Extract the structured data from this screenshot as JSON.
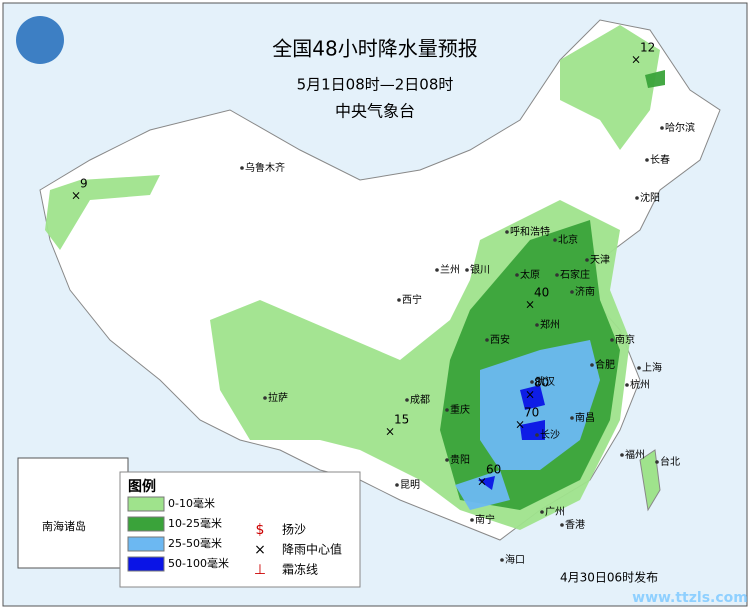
{
  "header": {
    "title": "全国48小时降水量预报",
    "date_range": "5月1日08时—2日08时",
    "issuer": "中央气象台"
  },
  "legend": {
    "title": "图例",
    "items": [
      {
        "label": "0-10毫米",
        "color": "#9fe38c"
      },
      {
        "label": "10-25毫米",
        "color": "#3aa33a"
      },
      {
        "label": "25-50毫米",
        "color": "#6cb8f2"
      },
      {
        "label": "50-100毫米",
        "color": "#0a14e6"
      }
    ],
    "symbols": [
      {
        "label": "扬沙"
      },
      {
        "label": "降雨中心值"
      },
      {
        "label": "霜冻线"
      }
    ]
  },
  "inset": {
    "label": "南海诸岛"
  },
  "cities": [
    "乌鲁木齐",
    "哈尔滨",
    "长春",
    "沈阳",
    "呼和浩特",
    "北京",
    "天津",
    "太原",
    "石家庄",
    "济南",
    "郑州",
    "西安",
    "兰州",
    "西宁",
    "银川",
    "拉萨",
    "成都",
    "重庆",
    "贵阳",
    "昆明",
    "南宁",
    "广州",
    "海口",
    "武汉",
    "长沙",
    "南昌",
    "合肥",
    "南京",
    "上海",
    "杭州",
    "福州",
    "台北",
    "香港"
  ],
  "rain_centers": [
    12,
    9,
    40,
    80,
    70,
    15,
    60
  ],
  "footer": {
    "issued": "4月30日06时发布",
    "watermark": "www.ttzls.com"
  }
}
